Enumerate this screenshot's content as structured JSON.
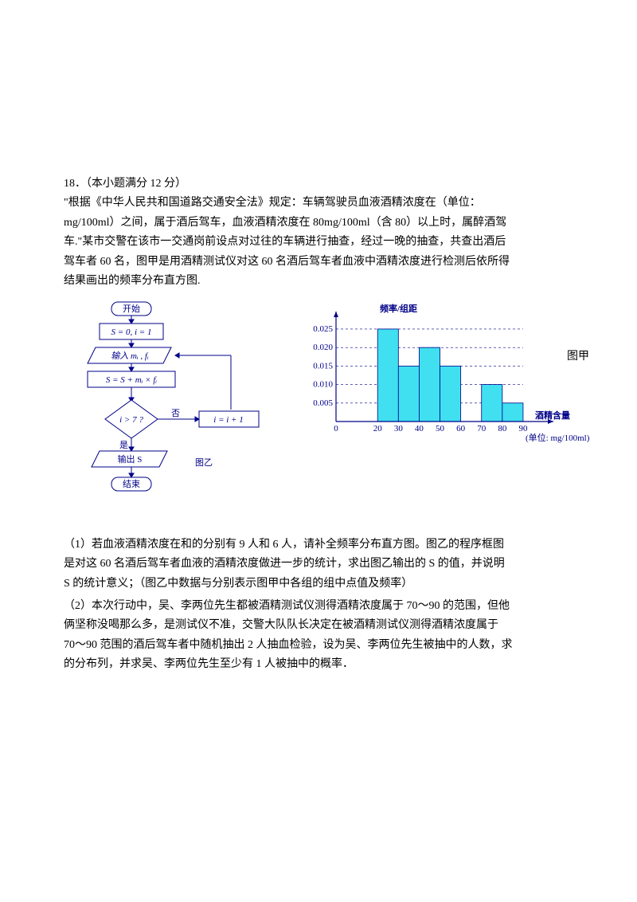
{
  "problem": {
    "number": "18．（本小题满分 12 分）",
    "line1": "\"根据《中华人民共和国道路交通安全法》规定：车辆驾驶员血液酒精浓度在（单位：",
    "line2": "mg/100ml）之间，属于酒后驾车，血液酒精浓度在 80mg/100ml（含 80）以上时，属醉酒驾",
    "line3": "车.\"某市交警在该市一交通岗前设点对过往的车辆进行抽查，经过一晚的抽查，共查出酒后",
    "line4": "驾车者 60 名，图甲是用酒精测试仪对这 60  名酒后驾车者血液中酒精浓度进行检测后依所得",
    "line5": "结果画出的频率分布直方图."
  },
  "flowchart": {
    "start": "开始",
    "init": "S = 0, i = 1",
    "input": "输入 m_i , f_i",
    "calc": "S = S + m_i × f_i",
    "cond": "i > 7 ?",
    "inc": "i = i + 1",
    "output": "输出 S",
    "end": "结束",
    "yes": "是",
    "no": "否",
    "caption": "图乙"
  },
  "histogram": {
    "y_title": "频率/组距",
    "x_title": "酒精含量",
    "unit": "(单位: mg/100ml)",
    "caption": "图甲",
    "x_ticks": [
      "0",
      "20",
      "30",
      "40",
      "50",
      "60",
      "70",
      "80",
      "90"
    ],
    "y_ticks": [
      "0.005",
      "0.010",
      "0.015",
      "0.020",
      "0.025"
    ],
    "bars": [
      {
        "from": 20,
        "to": 30,
        "h": 0.025
      },
      {
        "from": 30,
        "to": 40,
        "h": 0.015
      },
      {
        "from": 40,
        "to": 50,
        "h": 0.02
      },
      {
        "from": 50,
        "to": 60,
        "h": 0.015
      },
      {
        "from": 70,
        "to": 80,
        "h": 0.01
      },
      {
        "from": 80,
        "to": 90,
        "h": 0.005
      }
    ],
    "bar_color": "#40E0F0",
    "axes_color": "#000088",
    "grid_color": "#000088",
    "bg": "#ffffff",
    "y_max": 0.028,
    "x_domain": [
      0,
      95
    ]
  },
  "q1": {
    "l1": "（1）若血液酒精浓度在和的分别有 9 人和 6 人，请补全频率分布直方图。图乙的程序框图",
    "l2": "是对这 60 名酒后驾车者血液的酒精浓度做进一步的统计，求出图乙输出的 S 的值，并说明",
    "l3": "S 的统计意义；（图乙中数据与分别表示图甲中各组的组中点值及频率）"
  },
  "q2": {
    "l1": "（2）本次行动中，吴、李两位先生都被酒精测试仪测得酒精浓度属于 70～90 的范围，但他",
    "l2": "俩坚称没喝那么多，是测试仪不准，交警大队队长决定在被酒精测试仪测得酒精浓度属于",
    "l3": "70～90 范围的酒后驾车者中随机抽出 2 人抽血检验，设为吴、李两位先生被抽中的人数，求",
    "l4": "的分布列，并求吴、李两位先生至少有 1 人被抽中的概率．"
  }
}
